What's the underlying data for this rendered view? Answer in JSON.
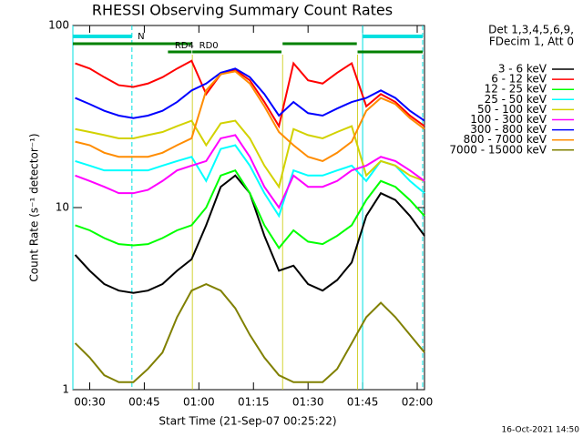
{
  "chart_data": {
    "type": "line",
    "title": "RHESSI Observing Summary Count Rates",
    "xlabel": "Start Time (21-Sep-07 00:25:22)",
    "ylabel": "Count Rate (s⁻¹ detector⁻¹)",
    "legend_header": [
      "Det 1,3,4,5,6,9,",
      "FDecim 1, Att 0"
    ],
    "timestamp": "16-Oct-2021 14:50",
    "legend": "outside-right",
    "log_y": true,
    "xlim": [
      25.37,
      122
    ],
    "ylim": [
      1,
      100
    ],
    "yticks": [
      1,
      10,
      100
    ],
    "xticks": [
      {
        "value": 30,
        "label": "00:30"
      },
      {
        "value": 45,
        "label": "00:45"
      },
      {
        "value": 60,
        "label": "01:00"
      },
      {
        "value": 75,
        "label": "01:15"
      },
      {
        "value": 90,
        "label": "01:30"
      },
      {
        "value": 105,
        "label": "01:45"
      },
      {
        "value": 120,
        "label": "02:00"
      }
    ],
    "night": {
      "label": "N",
      "color": "#00e0e0",
      "intervals": [
        [
          25.37,
          41.6
        ],
        [
          105.0,
          121.5
        ]
      ]
    },
    "decimation": {
      "color": "#008000",
      "intervals": [
        {
          "start": 25.37,
          "end": 58.0
        },
        {
          "start": 51.5,
          "end": 58.0,
          "label": "RD4"
        },
        {
          "start": 58.2,
          "end": 82.7,
          "label": "RD0"
        },
        {
          "start": 83.0,
          "end": 103.4
        },
        {
          "start": 103.6,
          "end": 121.5
        }
      ]
    },
    "x": [
      26,
      30,
      34,
      38,
      42,
      46,
      50,
      54,
      58,
      62,
      66,
      70,
      74,
      78,
      82,
      86,
      90,
      94,
      98,
      102,
      106,
      110,
      114,
      118,
      122
    ],
    "series": [
      {
        "name": "3 - 6 keV",
        "color": "#000000",
        "values": [
          5.5,
          4.5,
          3.8,
          3.5,
          3.4,
          3.5,
          3.8,
          4.5,
          5.2,
          8,
          13,
          15,
          12,
          7,
          4.5,
          4.8,
          3.8,
          3.5,
          4,
          5,
          9,
          12,
          11,
          9,
          7
        ]
      },
      {
        "name": "6 - 12 keV",
        "color": "#ff0000",
        "values": [
          62,
          58,
          52,
          47,
          46,
          48,
          52,
          58,
          64,
          42,
          54,
          57,
          50,
          38,
          28,
          62,
          50,
          48,
          55,
          62,
          36,
          42,
          38,
          32,
          28
        ]
      },
      {
        "name": "12 - 25 keV",
        "color": "#00ff00",
        "values": [
          8,
          7.5,
          6.8,
          6.3,
          6.2,
          6.3,
          6.8,
          7.5,
          8,
          10,
          15,
          16,
          12,
          8,
          6,
          7.5,
          6.5,
          6.3,
          7,
          8,
          11,
          14,
          13,
          11,
          9
        ]
      },
      {
        "name": "25 - 50 keV",
        "color": "#00ffff",
        "values": [
          18,
          17,
          16,
          16,
          16,
          16,
          17,
          18,
          19,
          14,
          21,
          22,
          17,
          12,
          9,
          16,
          15,
          15,
          16,
          17,
          14,
          18,
          17,
          14,
          12
        ]
      },
      {
        "name": "50 - 100 keV",
        "color": "#d2d200",
        "values": [
          27,
          26,
          25,
          24,
          24,
          25,
          26,
          28,
          30,
          22,
          29,
          30,
          24,
          17,
          13,
          27,
          25,
          24,
          26,
          28,
          15,
          18,
          17,
          15,
          14
        ]
      },
      {
        "name": "100 - 300 keV",
        "color": "#ff00ff",
        "values": [
          15,
          14,
          13,
          12,
          12,
          12.5,
          14,
          16,
          17,
          18,
          24,
          25,
          19,
          13,
          10,
          15,
          13,
          13,
          14,
          16,
          17,
          19,
          18,
          16,
          14
        ]
      },
      {
        "name": "300 - 800 keV",
        "color": "#0000ff",
        "values": [
          40,
          37,
          34,
          32,
          31,
          32,
          34,
          38,
          44,
          48,
          55,
          58,
          52,
          42,
          32,
          38,
          33,
          32,
          35,
          38,
          40,
          44,
          40,
          34,
          30
        ]
      },
      {
        "name": "800 - 7000 keV",
        "color": "#ff8c00",
        "values": [
          23,
          22,
          20,
          19,
          19,
          19,
          20,
          22,
          24,
          44,
          54,
          56,
          48,
          36,
          26,
          22,
          19,
          18,
          20,
          23,
          34,
          40,
          37,
          31,
          27
        ]
      },
      {
        "name": "7000 - 15000 keV",
        "color": "#808000",
        "values": [
          1.8,
          1.5,
          1.2,
          1.1,
          1.1,
          1.3,
          1.6,
          2.5,
          3.5,
          3.8,
          3.5,
          2.8,
          2,
          1.5,
          1.2,
          1.1,
          1.1,
          1.1,
          1.3,
          1.8,
          2.5,
          3,
          2.5,
          2,
          1.6
        ]
      }
    ]
  }
}
